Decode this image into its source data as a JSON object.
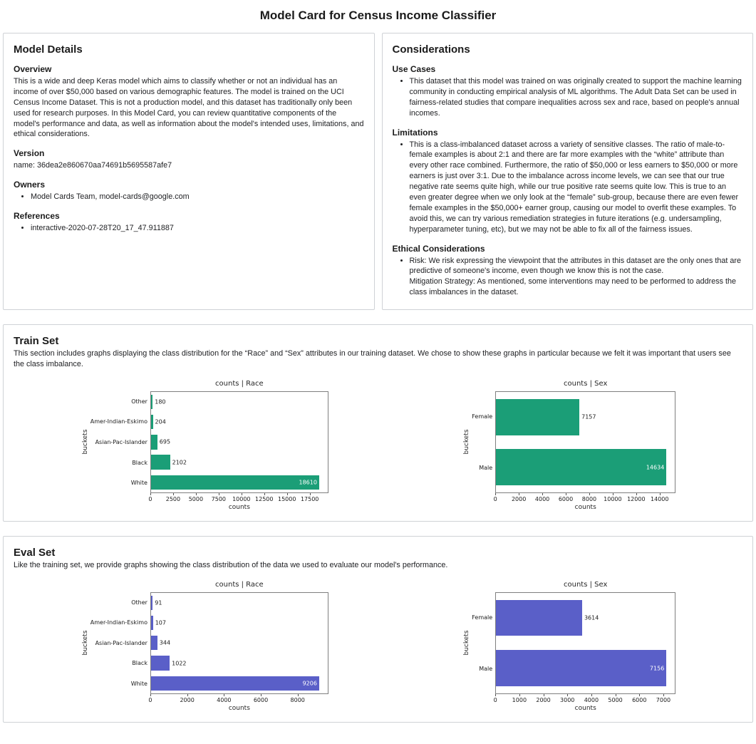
{
  "page": {
    "title": "Model Card for Census Income Classifier"
  },
  "model_details": {
    "heading": "Model Details",
    "overview_heading": "Overview",
    "overview_text": "This is a wide and deep Keras model which aims to classify whether or not an individual has an income of over $50,000 based on various demographic features. The model is trained on the UCI Census Income Dataset. This is not a production model, and this dataset has traditionally only been used for research purposes. In this Model Card, you can review quantitative components of the model's performance and data, as well as information about the model's intended uses, limitations, and ethical considerations.",
    "version_heading": "Version",
    "version_text": "name: 36dea2e860670aa74691b5695587afe7",
    "owners_heading": "Owners",
    "owners": [
      "Model Cards Team, model-cards@google.com"
    ],
    "references_heading": "References",
    "references": [
      "interactive-2020-07-28T20_17_47.911887"
    ]
  },
  "considerations": {
    "heading": "Considerations",
    "use_cases_heading": "Use Cases",
    "use_cases": [
      "This dataset that this model was trained on was originally created to support the machine learning community in conducting empirical analysis of ML algorithms. The Adult Data Set can be used in fairness-related studies that compare inequalities across sex and race, based on people's annual incomes."
    ],
    "limitations_heading": "Limitations",
    "limitations": [
      "This is a class-imbalanced dataset across a variety of sensitive classes. The ratio of male-to-female examples is about 2:1 and there are far more examples with the “white” attribute than every other race combined. Furthermore, the ratio of $50,000 or less earners to $50,000 or more earners is just over 3:1. Due to the imbalance across income levels, we can see that our true negative rate seems quite high, while our true positive rate seems quite low. This is true to an even greater degree when we only look at the “female” sub-group, because there are even fewer female examples in the $50,000+ earner group, causing our model to overfit these examples. To avoid this, we can try various remediation strategies in future iterations (e.g. undersampling, hyperparameter tuning, etc), but we may not be able to fix all of the fairness issues."
    ],
    "ethical_heading": "Ethical Considerations",
    "ethical": [
      "Risk: We risk expressing the viewpoint that the attributes in this dataset are the only ones that are predictive of someone's income, even though we know this is not the case.\nMitigation Strategy: As mentioned, some interventions may need to be performed to address the class imbalances in the dataset."
    ]
  },
  "train_set": {
    "heading": "Train Set",
    "description": "This section includes graphs displaying the class distribution for the “Race” and “Sex” attributes in our training dataset. We chose to show these graphs in particular because we felt it was important that users see the class imbalance."
  },
  "eval_set": {
    "heading": "Eval Set",
    "description": "Like the training set, we provide graphs showing the class distribution of the data we used to evaluate our model's performance."
  },
  "chart_data": [
    {
      "type": "bar",
      "orientation": "horizontal",
      "title": "counts | Race",
      "xlabel": "counts",
      "ylabel": "buckets",
      "categories": [
        "Other",
        "Amer-Indian-Eskimo",
        "Asian-Pac-Islander",
        "Black",
        "White"
      ],
      "values": [
        180,
        204,
        695,
        2102,
        18610
      ],
      "bar_color": "#1b9e77",
      "xlim": [
        0,
        19540
      ],
      "xticks": [
        0,
        2500,
        5000,
        7500,
        10000,
        12500,
        15000,
        17500
      ],
      "grid": false,
      "legend": false
    },
    {
      "type": "bar",
      "orientation": "horizontal",
      "title": "counts | Sex",
      "xlabel": "counts",
      "ylabel": "buckets",
      "categories": [
        "Female",
        "Male"
      ],
      "values": [
        7157,
        14634
      ],
      "bar_color": "#1b9e77",
      "xlim": [
        0,
        15366
      ],
      "xticks": [
        0,
        2000,
        4000,
        6000,
        8000,
        10000,
        12000,
        14000
      ],
      "grid": false,
      "legend": false
    },
    {
      "type": "bar",
      "orientation": "horizontal",
      "title": "counts | Race",
      "xlabel": "counts",
      "ylabel": "buckets",
      "categories": [
        "Other",
        "Amer-Indian-Eskimo",
        "Asian-Pac-Islander",
        "Black",
        "White"
      ],
      "values": [
        91,
        107,
        344,
        1022,
        9206
      ],
      "bar_color": "#5a5fc8",
      "xlim": [
        0,
        9666
      ],
      "xticks": [
        0,
        2000,
        4000,
        6000,
        8000
      ],
      "grid": false,
      "legend": false
    },
    {
      "type": "bar",
      "orientation": "horizontal",
      "title": "counts | Sex",
      "xlabel": "counts",
      "ylabel": "buckets",
      "categories": [
        "Female",
        "Male"
      ],
      "values": [
        3614,
        7156
      ],
      "bar_color": "#5a5fc8",
      "xlim": [
        0,
        7514
      ],
      "xticks": [
        0,
        1000,
        2000,
        3000,
        4000,
        5000,
        6000,
        7000
      ],
      "grid": false,
      "legend": false
    }
  ]
}
